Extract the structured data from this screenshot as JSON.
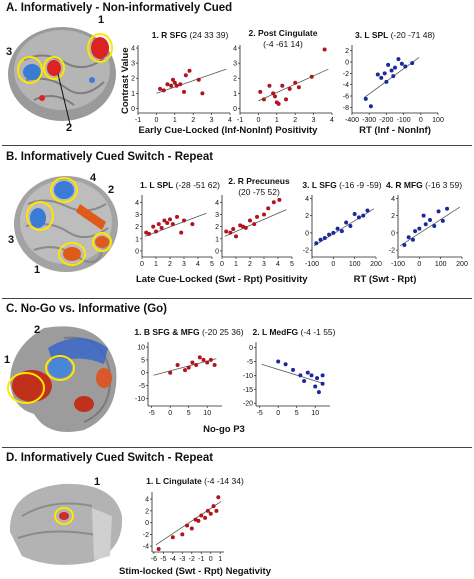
{
  "sections": [
    {
      "title": "A. Informatively - Non-informatively Cued"
    },
    {
      "title": "B. Informatively Cued Switch - Repeat"
    },
    {
      "title": "C. No-Go vs. Informative (Go)"
    },
    {
      "title": "D. Informatively Cued Switch - Repeat"
    }
  ],
  "callouts": {
    "a1": "1",
    "a2": "2",
    "a3": "3",
    "b1": "1",
    "b2": "2",
    "b3": "3",
    "b4": "4",
    "c1": "1",
    "c2": "2",
    "d1": "1"
  },
  "axis_labels": {
    "contrast_value": "Contrast Value",
    "a_early": "Early Cue-Locked (Inf-NonInf) Positivity",
    "a_rt": "RT (Inf - NonInf)",
    "b_late": "Late Cue-Locked (Swt - Rpt) Positivity",
    "b_rt": "RT (Swt - Rpt)",
    "c_nogo": "No-go P3",
    "d_stim": "Stim-locked (Swt - Rpt) Negativity"
  },
  "colors": {
    "red_series": "#b0141e",
    "blue_series": "#1a2a9c",
    "ring": "#ffe600"
  },
  "chart_data": [
    {
      "id": "A1",
      "type": "scatter",
      "title": "1. R SFG",
      "subtitle": "(24 33 39)",
      "color": "red",
      "xticks": [
        -1,
        0,
        1,
        2,
        3,
        4
      ],
      "yticks": [
        0,
        1,
        2,
        3,
        4
      ],
      "xlim": [
        -1,
        4
      ],
      "ylim": [
        -0.3,
        4.2
      ],
      "x": [
        0.2,
        0.4,
        0.6,
        0.8,
        0.9,
        1.0,
        1.1,
        1.3,
        1.5,
        1.6,
        1.8,
        2.3,
        2.5
      ],
      "y": [
        1.3,
        1.2,
        1.6,
        1.5,
        1.9,
        1.7,
        1.5,
        1.6,
        1.1,
        2.2,
        2.5,
        1.9,
        1.0
      ],
      "fit": [
        [
          0,
          1.0
        ],
        [
          3.8,
          2.6
        ]
      ]
    },
    {
      "id": "A2",
      "type": "scatter",
      "title": "2. Post Cingulate",
      "subtitle": "(-4 -61 14)",
      "color": "red",
      "xticks": [
        -1,
        0,
        1,
        2,
        3,
        4
      ],
      "yticks": [
        0,
        1,
        2,
        3,
        4
      ],
      "xlim": [
        -1,
        4
      ],
      "ylim": [
        -0.3,
        4.2
      ],
      "x": [
        0.1,
        0.3,
        0.6,
        0.8,
        0.9,
        1.0,
        1.1,
        1.3,
        1.5,
        1.7,
        2.0,
        2.2,
        2.9,
        3.6
      ],
      "y": [
        1.1,
        0.6,
        1.5,
        1.0,
        0.8,
        0.4,
        0.3,
        1.5,
        0.6,
        1.3,
        1.7,
        1.4,
        2.1,
        3.9
      ],
      "fit": [
        [
          0,
          0.5
        ],
        [
          3.8,
          2.6
        ]
      ]
    },
    {
      "id": "A3",
      "type": "scatter",
      "title": "3. L SPL",
      "subtitle": "(-20 -71 48)",
      "color": "blue",
      "xticks": [
        -400,
        -300,
        -200,
        -100,
        0,
        100
      ],
      "yticks": [
        -8,
        -6,
        -4,
        -2,
        0,
        2
      ],
      "xlim": [
        -400,
        100
      ],
      "ylim": [
        -9,
        3
      ],
      "x": [
        -320,
        -290,
        -250,
        -230,
        -210,
        -200,
        -190,
        -170,
        -160,
        -150,
        -130,
        -110,
        -90,
        -50
      ],
      "y": [
        -6.5,
        -7.8,
        -2.2,
        -2.8,
        -2.0,
        -3.5,
        -0.5,
        -1.5,
        -2.5,
        -1.0,
        0.5,
        -0.3,
        -0.8,
        -0.2
      ],
      "fit": [
        [
          -330,
          -6.3
        ],
        [
          -10,
          0.8
        ]
      ]
    },
    {
      "id": "B1",
      "type": "scatter",
      "title": "1. L SPL",
      "subtitle": "(-28 -51 62)",
      "color": "red",
      "xticks": [
        0,
        1,
        2,
        3,
        4,
        5
      ],
      "yticks": [
        0,
        1,
        2,
        3,
        4
      ],
      "xlim": [
        0,
        5
      ],
      "ylim": [
        -0.5,
        4.6
      ],
      "x": [
        0.3,
        0.5,
        0.8,
        1.0,
        1.2,
        1.4,
        1.6,
        1.8,
        2.0,
        2.2,
        2.5,
        2.8,
        3.0,
        3.6
      ],
      "y": [
        1.5,
        1.4,
        2.0,
        1.6,
        2.2,
        1.9,
        2.5,
        2.3,
        2.6,
        2.2,
        2.8,
        1.5,
        2.5,
        2.2
      ],
      "fit": [
        [
          0.2,
          1.2
        ],
        [
          4.6,
          3.1
        ]
      ]
    },
    {
      "id": "B2",
      "type": "scatter",
      "title": "2. R Precuneus",
      "subtitle": "(20 -75 52)",
      "color": "red",
      "xticks": [
        0,
        1,
        2,
        3,
        4,
        5
      ],
      "yticks": [
        0,
        1,
        2,
        3,
        4
      ],
      "xlim": [
        0,
        5
      ],
      "ylim": [
        -0.5,
        4.6
      ],
      "x": [
        0.3,
        0.6,
        0.8,
        1.0,
        1.3,
        1.5,
        1.7,
        2.0,
        2.3,
        2.5,
        3.0,
        3.3,
        3.7,
        4.1
      ],
      "y": [
        1.6,
        1.5,
        1.8,
        1.2,
        2.1,
        2.0,
        1.9,
        2.5,
        2.2,
        2.8,
        3.0,
        3.5,
        4.0,
        4.2
      ],
      "fit": [
        [
          0.2,
          1.2
        ],
        [
          4.6,
          3.4
        ]
      ]
    },
    {
      "id": "B3",
      "type": "scatter",
      "title": "3. L SFG",
      "subtitle": "(-16 -9 -59)",
      "color": "blue",
      "xticks": [
        -100,
        0,
        100,
        200
      ],
      "yticks": [
        -2,
        0,
        2,
        4
      ],
      "xlim": [
        -100,
        200
      ],
      "ylim": [
        -2.8,
        4.4
      ],
      "x": [
        -80,
        -60,
        -40,
        -20,
        0,
        20,
        40,
        60,
        80,
        100,
        120,
        140,
        160
      ],
      "y": [
        -1.2,
        -0.8,
        -0.6,
        -0.2,
        0.0,
        0.5,
        0.2,
        1.2,
        0.8,
        2.2,
        1.8,
        2.0,
        2.6
      ],
      "fit": [
        [
          -90,
          -1.5
        ],
        [
          190,
          2.8
        ]
      ]
    },
    {
      "id": "B4",
      "type": "scatter",
      "title": "4. R MFG",
      "subtitle": "(-16 3 59)",
      "color": "blue",
      "xticks": [
        -100,
        0,
        100,
        200
      ],
      "yticks": [
        -2,
        0,
        2,
        4
      ],
      "xlim": [
        -100,
        200
      ],
      "ylim": [
        -2.8,
        4.4
      ],
      "x": [
        -70,
        -50,
        -30,
        -20,
        0,
        20,
        30,
        50,
        70,
        90,
        110,
        130
      ],
      "y": [
        -1.4,
        -0.5,
        -0.8,
        0.2,
        0.5,
        2.0,
        1.0,
        1.5,
        0.8,
        2.5,
        1.4,
        2.8
      ],
      "fit": [
        [
          -90,
          -1.5
        ],
        [
          190,
          3.0
        ]
      ]
    },
    {
      "id": "C1",
      "type": "scatter",
      "title": "1. B SFG & MFG",
      "subtitle": "(-20 25 36)",
      "color": "red",
      "xticks": [
        -5,
        0,
        5,
        10
      ],
      "yticks": [
        -10,
        -5,
        0,
        5,
        10
      ],
      "xlim": [
        -6,
        14
      ],
      "ylim": [
        -13,
        12
      ],
      "x": [
        0,
        2,
        4,
        5,
        6,
        7,
        8,
        9,
        10,
        11,
        12
      ],
      "y": [
        0,
        3,
        1,
        2,
        4,
        3,
        6,
        5,
        4,
        5,
        3
      ],
      "fit": [
        [
          -4.5,
          -1
        ],
        [
          12.5,
          5.5
        ]
      ]
    },
    {
      "id": "C2",
      "type": "scatter",
      "title": "2. L MedFG",
      "subtitle": "(-4 -1 55)",
      "color": "blue",
      "xticks": [
        -5,
        0,
        5,
        10
      ],
      "yticks": [
        -20,
        -15,
        -10,
        -5,
        0
      ],
      "xlim": [
        -6,
        14
      ],
      "ylim": [
        -21,
        2
      ],
      "x": [
        0,
        2,
        4,
        6,
        7,
        8,
        9,
        10,
        10.5,
        11,
        12,
        12
      ],
      "y": [
        -5,
        -6,
        -8,
        -10,
        -12,
        -9,
        -10,
        -14,
        -11,
        -16,
        -13,
        -10
      ],
      "fit": [
        [
          -4.5,
          -6
        ],
        [
          12.5,
          -13
        ]
      ]
    },
    {
      "id": "D1",
      "type": "scatter",
      "title": "1. L Cingulate",
      "subtitle": "(-4 -14 34)",
      "color": "red",
      "xticks": [
        -6,
        -5,
        -4,
        -3,
        -2,
        -1,
        0,
        1
      ],
      "yticks": [
        -4,
        -2,
        0,
        2,
        4
      ],
      "xlim": [
        -6.2,
        1.4
      ],
      "ylim": [
        -5,
        5.2
      ],
      "x": [
        -5.5,
        -4,
        -3,
        -2.5,
        -2,
        -1.6,
        -1.3,
        -1,
        -0.6,
        -0.3,
        0,
        0.3,
        0.6,
        0.8
      ],
      "y": [
        -4.5,
        -2.5,
        -2,
        -0.5,
        -1,
        0.5,
        0.3,
        1.2,
        0.8,
        2,
        1.5,
        2.8,
        2,
        4.3
      ],
      "fit": [
        [
          -5.8,
          -3.8
        ],
        [
          1.1,
          3.6
        ]
      ]
    }
  ]
}
